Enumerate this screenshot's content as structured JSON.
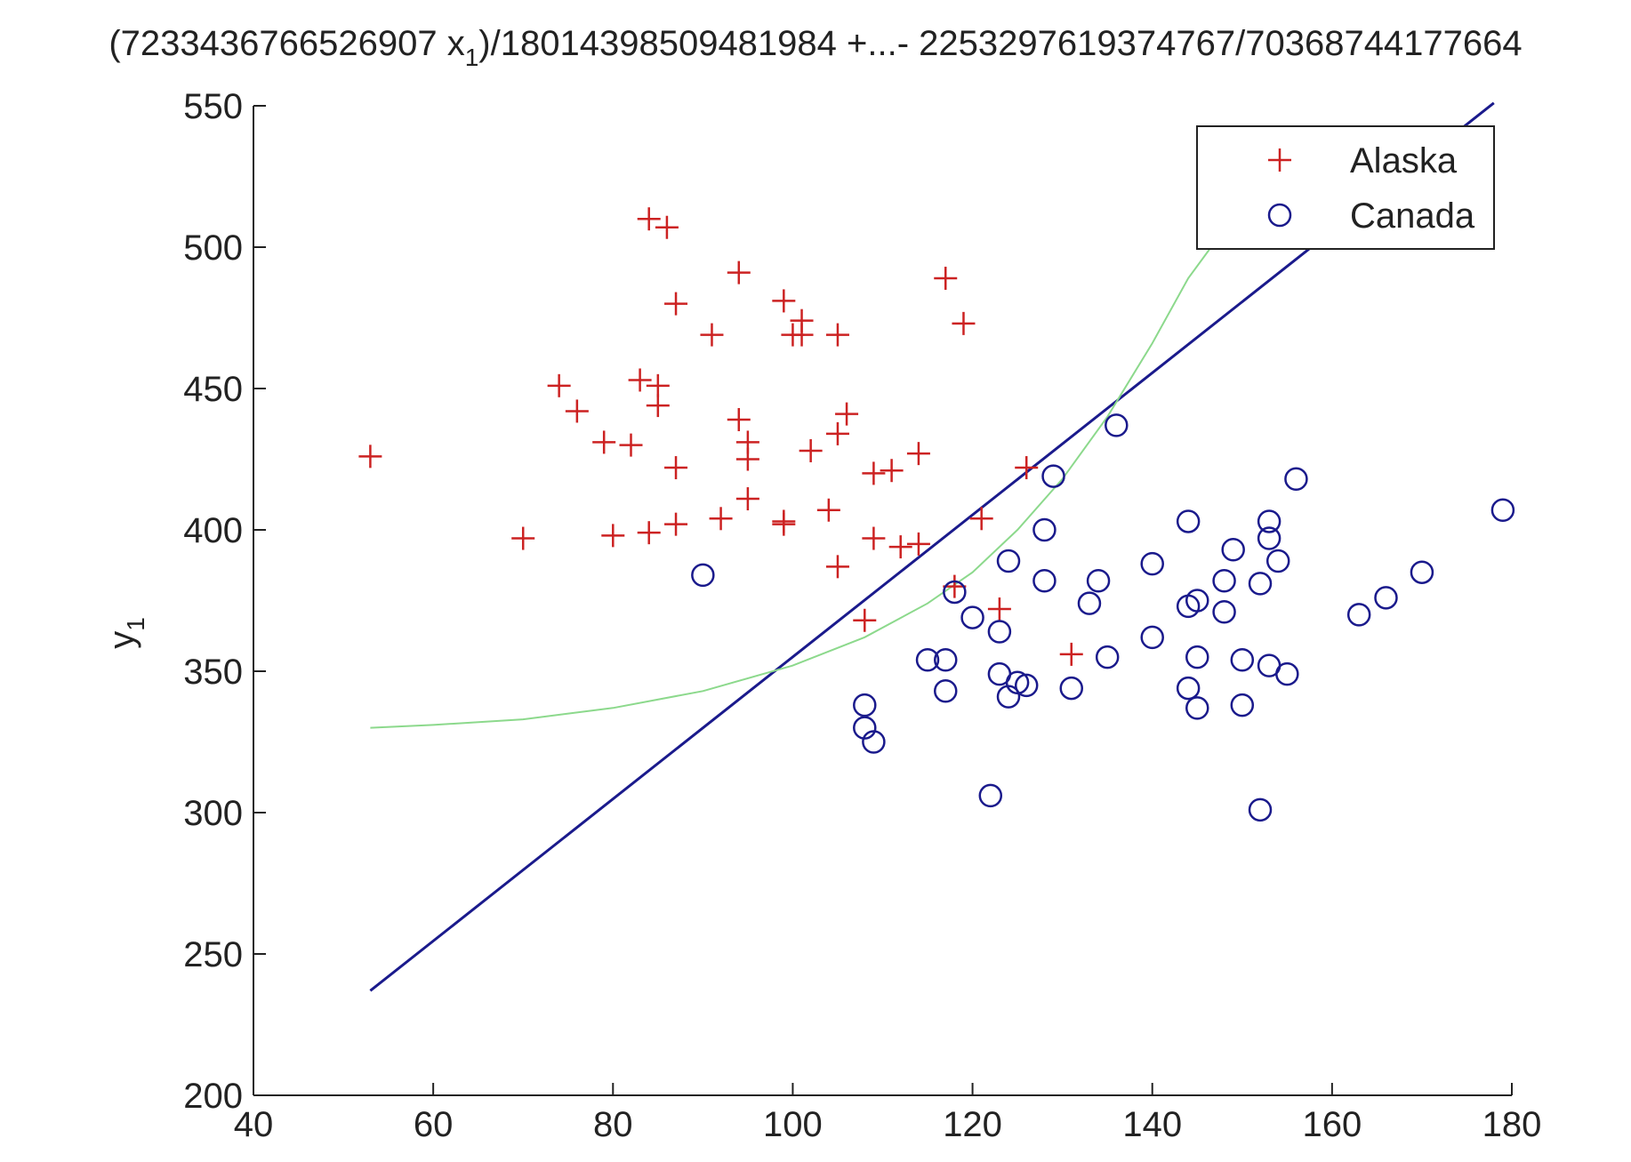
{
  "chart_data": {
    "type": "scatter",
    "title": {
      "main": "(7233436766526907 x",
      "sub": "1",
      "rest": ")/18014398509481984 +...- 2253297619374767/70368744177664"
    },
    "xlabel": "",
    "ylabel": {
      "main": "y",
      "sub": "1"
    },
    "xlim": [
      40,
      180
    ],
    "ylim": [
      200,
      550
    ],
    "xticks": [
      40,
      60,
      80,
      100,
      120,
      140,
      160,
      180
    ],
    "yticks": [
      200,
      250,
      300,
      350,
      400,
      450,
      500,
      550
    ],
    "grid": false,
    "legend_position": "top-right",
    "series": [
      {
        "name": "Alaska",
        "marker": "plus",
        "color": "#cc2222",
        "points": [
          [
            53,
            426
          ],
          [
            70,
            397
          ],
          [
            74,
            451
          ],
          [
            76,
            442
          ],
          [
            79,
            431
          ],
          [
            80,
            398
          ],
          [
            82,
            430
          ],
          [
            83,
            453
          ],
          [
            84,
            510
          ],
          [
            84,
            399
          ],
          [
            85,
            451
          ],
          [
            85,
            444
          ],
          [
            86,
            507
          ],
          [
            87,
            480
          ],
          [
            87,
            422
          ],
          [
            87,
            402
          ],
          [
            91,
            469
          ],
          [
            92,
            404
          ],
          [
            94,
            491
          ],
          [
            94,
            439
          ],
          [
            95,
            431
          ],
          [
            95,
            425
          ],
          [
            95,
            411
          ],
          [
            99,
            481
          ],
          [
            99,
            402
          ],
          [
            99,
            403
          ],
          [
            100,
            469
          ],
          [
            101,
            474
          ],
          [
            101,
            469
          ],
          [
            102,
            428
          ],
          [
            104,
            407
          ],
          [
            105,
            469
          ],
          [
            105,
            434
          ],
          [
            105,
            387
          ],
          [
            106,
            441
          ],
          [
            108,
            368
          ],
          [
            109,
            420
          ],
          [
            109,
            397
          ],
          [
            111,
            421
          ],
          [
            112,
            394
          ],
          [
            114,
            427
          ],
          [
            114,
            395
          ],
          [
            117,
            489
          ],
          [
            118,
            380
          ],
          [
            119,
            473
          ],
          [
            121,
            404
          ],
          [
            123,
            372
          ],
          [
            126,
            422
          ],
          [
            131,
            356
          ]
        ]
      },
      {
        "name": "Canada",
        "marker": "circle",
        "color": "#1a1a8c",
        "points": [
          [
            90,
            384
          ],
          [
            108,
            338
          ],
          [
            108,
            330
          ],
          [
            109,
            325
          ],
          [
            115,
            354
          ],
          [
            117,
            354
          ],
          [
            117,
            343
          ],
          [
            118,
            378
          ],
          [
            120,
            369
          ],
          [
            122,
            306
          ],
          [
            123,
            364
          ],
          [
            123,
            349
          ],
          [
            124,
            389
          ],
          [
            124,
            341
          ],
          [
            125,
            346
          ],
          [
            126,
            345
          ],
          [
            128,
            400
          ],
          [
            128,
            382
          ],
          [
            129,
            419
          ],
          [
            131,
            344
          ],
          [
            133,
            374
          ],
          [
            134,
            382
          ],
          [
            135,
            355
          ],
          [
            136,
            437
          ],
          [
            140,
            388
          ],
          [
            140,
            362
          ],
          [
            144,
            403
          ],
          [
            144,
            373
          ],
          [
            144,
            344
          ],
          [
            145,
            375
          ],
          [
            145,
            355
          ],
          [
            145,
            337
          ],
          [
            148,
            382
          ],
          [
            148,
            371
          ],
          [
            149,
            393
          ],
          [
            150,
            354
          ],
          [
            150,
            338
          ],
          [
            152,
            381
          ],
          [
            152,
            301
          ],
          [
            153,
            403
          ],
          [
            153,
            397
          ],
          [
            153,
            352
          ],
          [
            154,
            389
          ],
          [
            155,
            349
          ],
          [
            156,
            418
          ],
          [
            163,
            370
          ],
          [
            166,
            376
          ],
          [
            170,
            385
          ],
          [
            179,
            407
          ]
        ]
      },
      {
        "name": "",
        "type": "line",
        "color": "#1a1a8c",
        "points": [
          [
            53,
            237
          ],
          [
            178,
            551
          ]
        ]
      },
      {
        "name": "",
        "type": "curve",
        "color": "#8cd98c",
        "points": [
          [
            53,
            330
          ],
          [
            60,
            331
          ],
          [
            70,
            333
          ],
          [
            80,
            337
          ],
          [
            90,
            343
          ],
          [
            100,
            352
          ],
          [
            108,
            362
          ],
          [
            115,
            374
          ],
          [
            120,
            385
          ],
          [
            125,
            400
          ],
          [
            130,
            418
          ],
          [
            135,
            440
          ],
          [
            140,
            466
          ],
          [
            144,
            489
          ],
          [
            147,
            502
          ]
        ]
      }
    ]
  }
}
